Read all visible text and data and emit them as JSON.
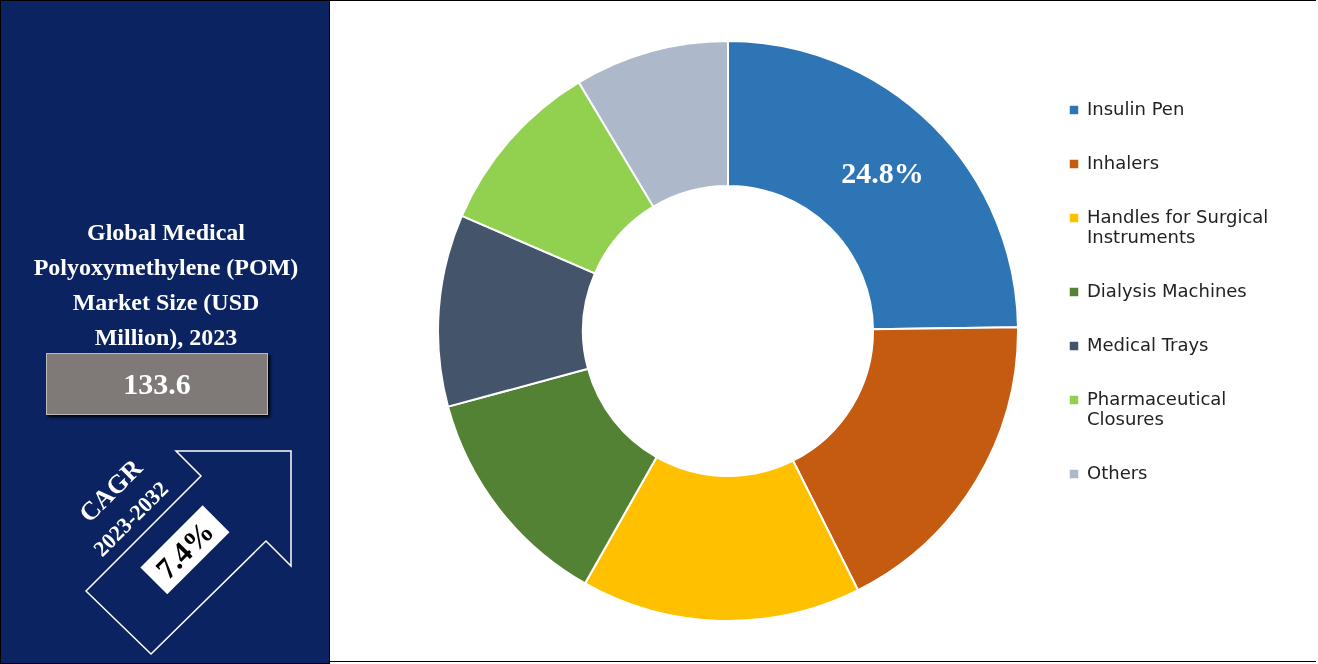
{
  "chart_data": [
    {
      "type": "other",
      "title": "Global Medical Polyoxymethylene (POM) Market Size (USD Million), 2023",
      "annotations": [
        "133.6",
        "CAGR",
        "2023-2032",
        "7.4%"
      ]
    },
    {
      "type": "donut",
      "categories": [
        "Insulin Pen",
        "Inhalers",
        "Handles for Surgical Instruments",
        "Dialysis Machines",
        "Medical Trays",
        "Pharmaceutical Closures",
        "Others"
      ],
      "values": [
        24.8,
        17.8,
        15.6,
        12.6,
        10.7,
        9.9,
        8.6
      ],
      "colors": [
        "#2e75b6",
        "#c55a11",
        "#ffc000",
        "#548235",
        "#44546a",
        "#92d050",
        "#adb9ca"
      ],
      "value_labels": [
        "24.8%",
        null,
        null,
        null,
        null,
        null,
        null
      ],
      "legend": "right"
    }
  ]
}
